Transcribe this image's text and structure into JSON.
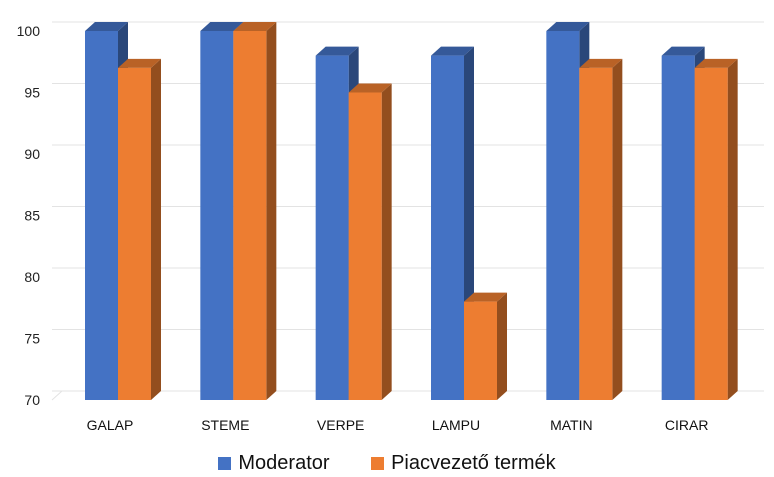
{
  "chart_data": {
    "type": "bar",
    "categories": [
      "GALAP",
      "STEME",
      "VERPE",
      "LAMPU",
      "MATIN",
      "CIRAR"
    ],
    "series": [
      {
        "name": "Moderator",
        "color": "#4472C4",
        "values": [
          100,
          100,
          98,
          98,
          100,
          98
        ]
      },
      {
        "name": "Piacvezető termék",
        "color": "#ED7D31",
        "values": [
          97,
          100,
          95,
          78,
          97,
          97
        ]
      }
    ],
    "ylim": [
      70,
      100
    ],
    "yticks": [
      70,
      75,
      80,
      85,
      90,
      95,
      100
    ],
    "grid": true,
    "legend": "bottom"
  }
}
